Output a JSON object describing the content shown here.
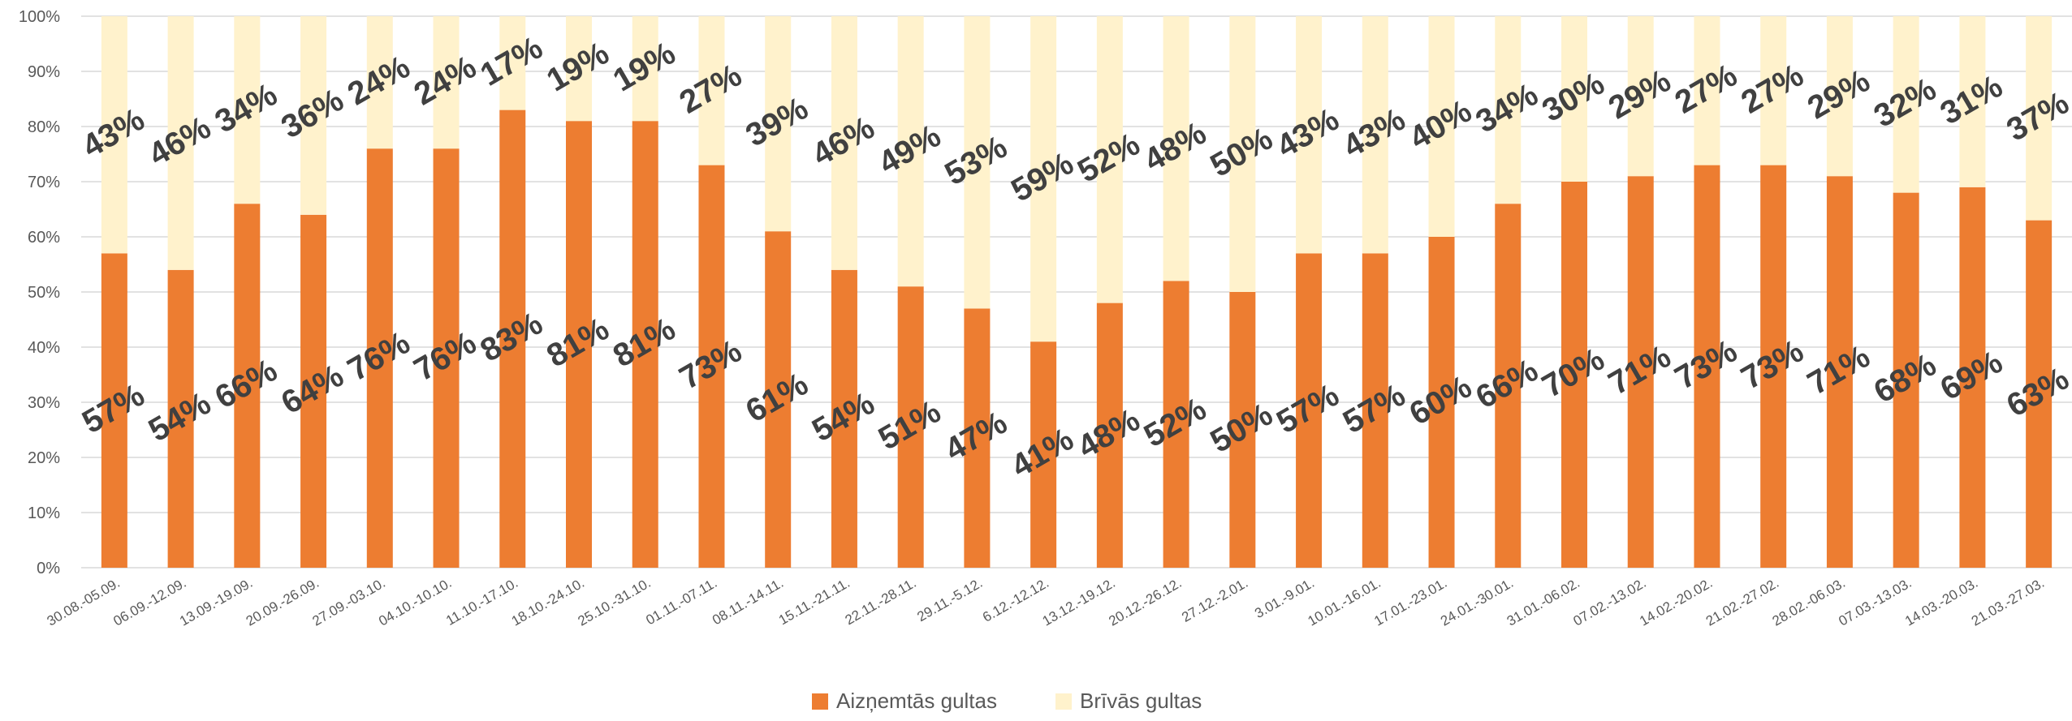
{
  "chart_data": {
    "type": "bar",
    "stacked": true,
    "percent_stacked": true,
    "categories": [
      "30.08.-05.09.",
      "06.09.-12.09.",
      "13.09.-19.09.",
      "20.09.-26.09.",
      "27.09.-03.10.",
      "04.10.-10.10.",
      "11.10.-17.10.",
      "18.10.-24.10.",
      "25.10.-31.10.",
      "01.11.-07.11.",
      "08.11.-14.11.",
      "15.11.-21.11.",
      "22.11.-28.11.",
      "29.11.-5.12.",
      "6.12.-12.12.",
      "13.12.-19.12.",
      "20.12.-26.12.",
      "27.12.-2.01.",
      "3.01.-9.01.",
      "10.01.-16.01.",
      "17.01.-23.01.",
      "24.01.-30.01.",
      "31.01.-06.02.",
      "07.02.-13.02.",
      "14.02.-20.02.",
      "21.02.-27.02.",
      "28.02.-06.03.",
      "07.03.-13.03.",
      "14.03.-20.03.",
      "21.03.-27.03."
    ],
    "series": [
      {
        "name": "Aizņemtās gultas",
        "color": "#ED7D31",
        "values": [
          57,
          54,
          66,
          64,
          76,
          76,
          83,
          81,
          81,
          73,
          61,
          54,
          51,
          47,
          41,
          48,
          52,
          50,
          57,
          57,
          60,
          66,
          70,
          71,
          73,
          73,
          71,
          68,
          69,
          63
        ],
        "labels": [
          "57%",
          "54%",
          "66%",
          "64%",
          "76%",
          "76%",
          "83%",
          "81%",
          "81%",
          "73%",
          "61%",
          "54%",
          "51%",
          "47%",
          "41%",
          "48%",
          "52%",
          "50%",
          "57%",
          "57%",
          "60%",
          "66%",
          "70%",
          "71%",
          "73%",
          "73%",
          "71%",
          "68%",
          "69%",
          "63%"
        ]
      },
      {
        "name": "Brīvās gultas",
        "color": "#FFF2CC",
        "values": [
          43,
          46,
          34,
          36,
          24,
          24,
          17,
          19,
          19,
          27,
          39,
          46,
          49,
          53,
          59,
          52,
          48,
          50,
          43,
          43,
          40,
          34,
          30,
          29,
          27,
          27,
          29,
          32,
          31,
          37
        ],
        "labels": [
          "43%",
          "46%",
          "34%",
          "36%",
          "24%",
          "24%",
          "17%",
          "19%",
          "19%",
          "27%",
          "39%",
          "46%",
          "49%",
          "53%",
          "59%",
          "52%",
          "48%",
          "50%",
          "43%",
          "43%",
          "40%",
          "34%",
          "30%",
          "29%",
          "27%",
          "27%",
          "29%",
          "32%",
          "31%",
          "37%"
        ]
      }
    ],
    "y_ticks": [
      "0%",
      "10%",
      "20%",
      "30%",
      "40%",
      "50%",
      "60%",
      "70%",
      "80%",
      "90%",
      "100%"
    ],
    "ylim": [
      0,
      100
    ],
    "grid": true,
    "legend": "bottom",
    "title": "",
    "xlabel": "",
    "ylabel": ""
  }
}
